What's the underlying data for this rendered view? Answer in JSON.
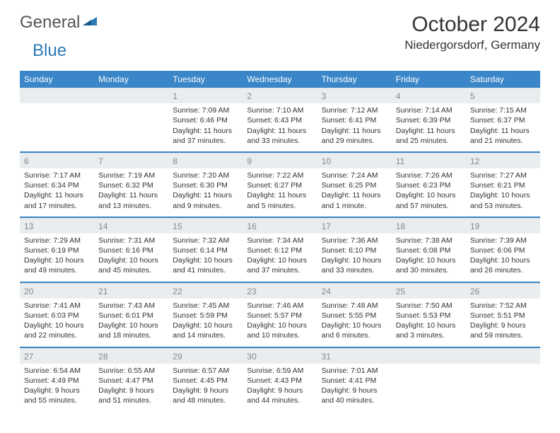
{
  "logo": {
    "word1": "General",
    "word2": "Blue"
  },
  "title": "October 2024",
  "location": "Niedergorsdorf, Germany",
  "colors": {
    "header_bg": "#3a86c8",
    "header_text": "#ffffff",
    "daynum_bg": "#e9edef",
    "daynum_text": "#888888",
    "row_divider": "#3a86c8",
    "body_text": "#333333"
  },
  "days_of_week": [
    "Sunday",
    "Monday",
    "Tuesday",
    "Wednesday",
    "Thursday",
    "Friday",
    "Saturday"
  ],
  "weeks": [
    [
      {
        "n": "",
        "sunrise": "",
        "sunset": "",
        "daylight": ""
      },
      {
        "n": "",
        "sunrise": "",
        "sunset": "",
        "daylight": ""
      },
      {
        "n": "1",
        "sunrise": "Sunrise: 7:09 AM",
        "sunset": "Sunset: 6:46 PM",
        "daylight": "Daylight: 11 hours and 37 minutes."
      },
      {
        "n": "2",
        "sunrise": "Sunrise: 7:10 AM",
        "sunset": "Sunset: 6:43 PM",
        "daylight": "Daylight: 11 hours and 33 minutes."
      },
      {
        "n": "3",
        "sunrise": "Sunrise: 7:12 AM",
        "sunset": "Sunset: 6:41 PM",
        "daylight": "Daylight: 11 hours and 29 minutes."
      },
      {
        "n": "4",
        "sunrise": "Sunrise: 7:14 AM",
        "sunset": "Sunset: 6:39 PM",
        "daylight": "Daylight: 11 hours and 25 minutes."
      },
      {
        "n": "5",
        "sunrise": "Sunrise: 7:15 AM",
        "sunset": "Sunset: 6:37 PM",
        "daylight": "Daylight: 11 hours and 21 minutes."
      }
    ],
    [
      {
        "n": "6",
        "sunrise": "Sunrise: 7:17 AM",
        "sunset": "Sunset: 6:34 PM",
        "daylight": "Daylight: 11 hours and 17 minutes."
      },
      {
        "n": "7",
        "sunrise": "Sunrise: 7:19 AM",
        "sunset": "Sunset: 6:32 PM",
        "daylight": "Daylight: 11 hours and 13 minutes."
      },
      {
        "n": "8",
        "sunrise": "Sunrise: 7:20 AM",
        "sunset": "Sunset: 6:30 PM",
        "daylight": "Daylight: 11 hours and 9 minutes."
      },
      {
        "n": "9",
        "sunrise": "Sunrise: 7:22 AM",
        "sunset": "Sunset: 6:27 PM",
        "daylight": "Daylight: 11 hours and 5 minutes."
      },
      {
        "n": "10",
        "sunrise": "Sunrise: 7:24 AM",
        "sunset": "Sunset: 6:25 PM",
        "daylight": "Daylight: 11 hours and 1 minute."
      },
      {
        "n": "11",
        "sunrise": "Sunrise: 7:26 AM",
        "sunset": "Sunset: 6:23 PM",
        "daylight": "Daylight: 10 hours and 57 minutes."
      },
      {
        "n": "12",
        "sunrise": "Sunrise: 7:27 AM",
        "sunset": "Sunset: 6:21 PM",
        "daylight": "Daylight: 10 hours and 53 minutes."
      }
    ],
    [
      {
        "n": "13",
        "sunrise": "Sunrise: 7:29 AM",
        "sunset": "Sunset: 6:19 PM",
        "daylight": "Daylight: 10 hours and 49 minutes."
      },
      {
        "n": "14",
        "sunrise": "Sunrise: 7:31 AM",
        "sunset": "Sunset: 6:16 PM",
        "daylight": "Daylight: 10 hours and 45 minutes."
      },
      {
        "n": "15",
        "sunrise": "Sunrise: 7:32 AM",
        "sunset": "Sunset: 6:14 PM",
        "daylight": "Daylight: 10 hours and 41 minutes."
      },
      {
        "n": "16",
        "sunrise": "Sunrise: 7:34 AM",
        "sunset": "Sunset: 6:12 PM",
        "daylight": "Daylight: 10 hours and 37 minutes."
      },
      {
        "n": "17",
        "sunrise": "Sunrise: 7:36 AM",
        "sunset": "Sunset: 6:10 PM",
        "daylight": "Daylight: 10 hours and 33 minutes."
      },
      {
        "n": "18",
        "sunrise": "Sunrise: 7:38 AM",
        "sunset": "Sunset: 6:08 PM",
        "daylight": "Daylight: 10 hours and 30 minutes."
      },
      {
        "n": "19",
        "sunrise": "Sunrise: 7:39 AM",
        "sunset": "Sunset: 6:06 PM",
        "daylight": "Daylight: 10 hours and 26 minutes."
      }
    ],
    [
      {
        "n": "20",
        "sunrise": "Sunrise: 7:41 AM",
        "sunset": "Sunset: 6:03 PM",
        "daylight": "Daylight: 10 hours and 22 minutes."
      },
      {
        "n": "21",
        "sunrise": "Sunrise: 7:43 AM",
        "sunset": "Sunset: 6:01 PM",
        "daylight": "Daylight: 10 hours and 18 minutes."
      },
      {
        "n": "22",
        "sunrise": "Sunrise: 7:45 AM",
        "sunset": "Sunset: 5:59 PM",
        "daylight": "Daylight: 10 hours and 14 minutes."
      },
      {
        "n": "23",
        "sunrise": "Sunrise: 7:46 AM",
        "sunset": "Sunset: 5:57 PM",
        "daylight": "Daylight: 10 hours and 10 minutes."
      },
      {
        "n": "24",
        "sunrise": "Sunrise: 7:48 AM",
        "sunset": "Sunset: 5:55 PM",
        "daylight": "Daylight: 10 hours and 6 minutes."
      },
      {
        "n": "25",
        "sunrise": "Sunrise: 7:50 AM",
        "sunset": "Sunset: 5:53 PM",
        "daylight": "Daylight: 10 hours and 3 minutes."
      },
      {
        "n": "26",
        "sunrise": "Sunrise: 7:52 AM",
        "sunset": "Sunset: 5:51 PM",
        "daylight": "Daylight: 9 hours and 59 minutes."
      }
    ],
    [
      {
        "n": "27",
        "sunrise": "Sunrise: 6:54 AM",
        "sunset": "Sunset: 4:49 PM",
        "daylight": "Daylight: 9 hours and 55 minutes."
      },
      {
        "n": "28",
        "sunrise": "Sunrise: 6:55 AM",
        "sunset": "Sunset: 4:47 PM",
        "daylight": "Daylight: 9 hours and 51 minutes."
      },
      {
        "n": "29",
        "sunrise": "Sunrise: 6:57 AM",
        "sunset": "Sunset: 4:45 PM",
        "daylight": "Daylight: 9 hours and 48 minutes."
      },
      {
        "n": "30",
        "sunrise": "Sunrise: 6:59 AM",
        "sunset": "Sunset: 4:43 PM",
        "daylight": "Daylight: 9 hours and 44 minutes."
      },
      {
        "n": "31",
        "sunrise": "Sunrise: 7:01 AM",
        "sunset": "Sunset: 4:41 PM",
        "daylight": "Daylight: 9 hours and 40 minutes."
      },
      {
        "n": "",
        "sunrise": "",
        "sunset": "",
        "daylight": ""
      },
      {
        "n": "",
        "sunrise": "",
        "sunset": "",
        "daylight": ""
      }
    ]
  ]
}
